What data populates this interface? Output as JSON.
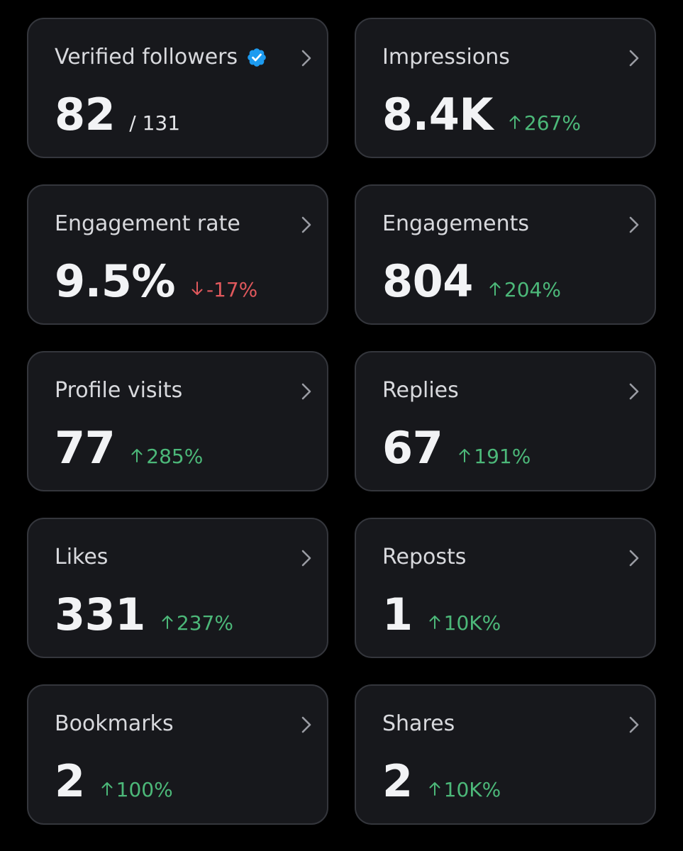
{
  "colors": {
    "background": "#000000",
    "card": "#17181c",
    "card_border": "#34363c",
    "label": "#d8d9dd",
    "value": "#f2f3f5",
    "positive": "#4cb879",
    "negative": "#e0585c",
    "verified_badge": "#1d9bf0",
    "chevron": "#9a9ca3"
  },
  "cards": [
    {
      "label": "Verified followers",
      "value": "82",
      "sub": "/ 131",
      "icon": "verified-badge-icon"
    },
    {
      "label": "Impressions",
      "value": "8.4K",
      "change": "267%",
      "direction": "up"
    },
    {
      "label": "Engagement rate",
      "value": "9.5%",
      "change": "-17%",
      "direction": "down"
    },
    {
      "label": "Engagements",
      "value": "804",
      "change": "204%",
      "direction": "up"
    },
    {
      "label": "Profile visits",
      "value": "77",
      "change": "285%",
      "direction": "up"
    },
    {
      "label": "Replies",
      "value": "67",
      "change": "191%",
      "direction": "up"
    },
    {
      "label": "Likes",
      "value": "331",
      "change": "237%",
      "direction": "up"
    },
    {
      "label": "Reposts",
      "value": "1",
      "change": "10K%",
      "direction": "up"
    },
    {
      "label": "Bookmarks",
      "value": "2",
      "change": "100%",
      "direction": "up"
    },
    {
      "label": "Shares",
      "value": "2",
      "change": "10K%",
      "direction": "up"
    }
  ]
}
